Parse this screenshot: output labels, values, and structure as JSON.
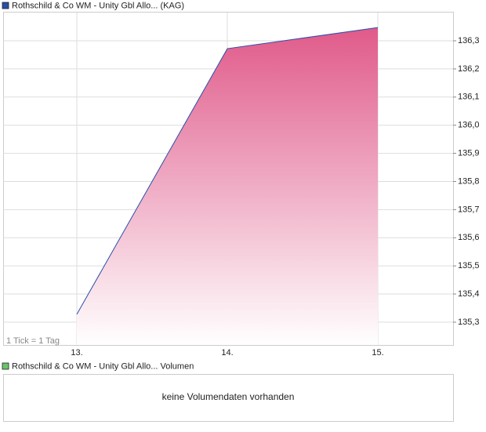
{
  "chart_data": {
    "type": "area",
    "categories": [
      "13.",
      "14.",
      "15."
    ],
    "series": [
      {
        "name": "Rothschild & Co WM - Unity Gbl Allo... (KAG)",
        "color": "#2a4fa8",
        "values": [
          135.328,
          136.272,
          136.347
        ]
      }
    ],
    "ylim": [
      135.219,
      136.431
    ],
    "yticks": [
      {
        "value": 135.3,
        "label": "135,3"
      },
      {
        "value": 135.4,
        "label": "135,4"
      },
      {
        "value": 135.5,
        "label": "135,5"
      },
      {
        "value": 135.6,
        "label": "135,6"
      },
      {
        "value": 135.7,
        "label": "135,7"
      },
      {
        "value": 135.8,
        "label": "135,8"
      },
      {
        "value": 135.9,
        "label": "135,9"
      },
      {
        "value": 136.0,
        "label": "136,0"
      },
      {
        "value": 136.1,
        "label": "136,1"
      },
      {
        "value": 136.2,
        "label": "136,2"
      },
      {
        "value": 136.3,
        "label": "136,3"
      }
    ],
    "grid": true,
    "fill_color": "#e05a8a",
    "annotation": "1 Tick = 1 Tag"
  },
  "volume_panel": {
    "legend": "Rothschild & Co WM - Unity Gbl Allo... Volumen",
    "legend_color": "#6ac46a",
    "message": "keine Volumendaten vorhanden"
  }
}
